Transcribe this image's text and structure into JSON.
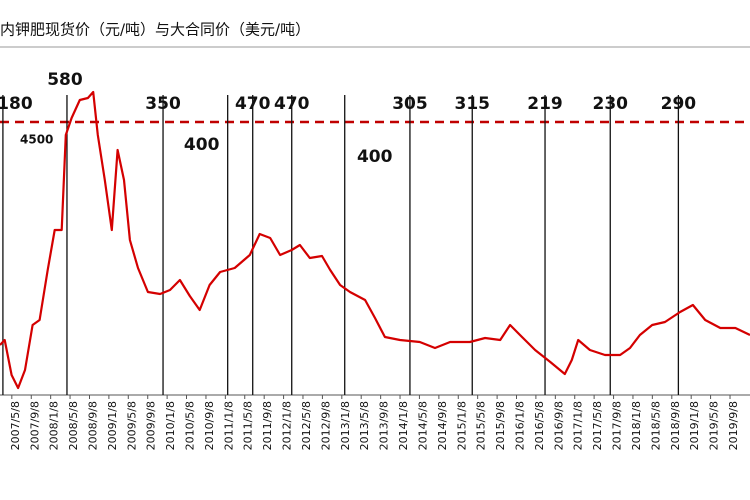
{
  "chart_data": {
    "type": "line",
    "title": "内钾肥现货价（元/吨）与大合同价（美元/吨）",
    "xlim": [
      2007.15,
      2020.03
    ],
    "ylim": [
      1500,
      5200
    ],
    "xticks": [
      {
        "value": 2007.353,
        "label": "2007/5/8"
      },
      {
        "value": 2007.687,
        "label": "2007/9/8"
      },
      {
        "value": 2008.02,
        "label": "2008/1/8"
      },
      {
        "value": 2008.353,
        "label": "2008/5/8"
      },
      {
        "value": 2008.687,
        "label": "2008/9/8"
      },
      {
        "value": 2009.02,
        "label": "2009/1/8"
      },
      {
        "value": 2009.353,
        "label": "2009/5/8"
      },
      {
        "value": 2009.687,
        "label": "2009/9/8"
      },
      {
        "value": 2010.02,
        "label": "2010/1/8"
      },
      {
        "value": 2010.353,
        "label": "2010/5/8"
      },
      {
        "value": 2010.687,
        "label": "2010/9/8"
      },
      {
        "value": 2011.02,
        "label": "2011/1/8"
      },
      {
        "value": 2011.353,
        "label": "2011/5/8"
      },
      {
        "value": 2011.687,
        "label": "2011/9/8"
      },
      {
        "value": 2012.02,
        "label": "2012/1/8"
      },
      {
        "value": 2012.353,
        "label": "2012/5/8"
      },
      {
        "value": 2012.687,
        "label": "2012/9/8"
      },
      {
        "value": 2013.02,
        "label": "2013/1/8"
      },
      {
        "value": 2013.353,
        "label": "2013/5/8"
      },
      {
        "value": 2013.687,
        "label": "2013/9/8"
      },
      {
        "value": 2014.02,
        "label": "2014/1/8"
      },
      {
        "value": 2014.353,
        "label": "2014/5/8"
      },
      {
        "value": 2014.687,
        "label": "2014/9/8"
      },
      {
        "value": 2015.02,
        "label": "2015/1/8"
      },
      {
        "value": 2015.353,
        "label": "2015/5/8"
      },
      {
        "value": 2015.687,
        "label": "2015/9/8"
      },
      {
        "value": 2016.02,
        "label": "2016/1/8"
      },
      {
        "value": 2016.353,
        "label": "2016/5/8"
      },
      {
        "value": 2016.687,
        "label": "2016/9/8"
      },
      {
        "value": 2017.02,
        "label": "2017/1/8"
      },
      {
        "value": 2017.353,
        "label": "2017/5/8"
      },
      {
        "value": 2017.687,
        "label": "2017/9/8"
      },
      {
        "value": 2018.02,
        "label": "2018/1/8"
      },
      {
        "value": 2018.353,
        "label": "2018/5/8"
      },
      {
        "value": 2018.687,
        "label": "2018/9/8"
      },
      {
        "value": 2019.02,
        "label": "2019/1/8"
      },
      {
        "value": 2019.353,
        "label": "2019/5/8"
      },
      {
        "value": 2019.687,
        "label": "2019/9/8"
      }
    ],
    "x": [
      2007.15,
      2007.23,
      2007.35,
      2007.46,
      2007.58,
      2007.71,
      2007.83,
      2007.97,
      2008.09,
      2008.21,
      2008.28,
      2008.38,
      2008.52,
      2008.66,
      2008.75,
      2008.83,
      2008.95,
      2009.07,
      2009.17,
      2009.28,
      2009.38,
      2009.52,
      2009.69,
      2009.9,
      2010.07,
      2010.24,
      2010.41,
      2010.58,
      2010.75,
      2010.93,
      2011.18,
      2011.44,
      2011.61,
      2011.79,
      2011.96,
      2012.16,
      2012.3,
      2012.47,
      2012.68,
      2012.82,
      2012.99,
      2013.16,
      2013.42,
      2013.59,
      2013.76,
      2014.02,
      2014.36,
      2014.62,
      2014.88,
      2015.22,
      2015.48,
      2015.74,
      2015.91,
      2016.08,
      2016.34,
      2016.6,
      2016.85,
      2016.97,
      2017.08,
      2017.28,
      2017.54,
      2017.8,
      2017.97,
      2018.14,
      2018.35,
      2018.57,
      2018.83,
      2019.05,
      2019.26,
      2019.52,
      2019.78,
      2020.03
    ],
    "series": [
      {
        "color": "#d40000",
        "values": [
          2153,
          2205,
          1837,
          1700,
          1889,
          2363,
          2416,
          2942,
          3363,
          3363,
          4363,
          4542,
          4732,
          4753,
          4816,
          4363,
          3889,
          3363,
          4205,
          3889,
          3258,
          2963,
          2711,
          2689,
          2732,
          2837,
          2668,
          2521,
          2784,
          2921,
          2963,
          3100,
          3321,
          3279,
          3100,
          3153,
          3205,
          3068,
          3089,
          2942,
          2784,
          2711,
          2626,
          2437,
          2237,
          2205,
          2184,
          2121,
          2184,
          2184,
          2226,
          2205,
          2363,
          2258,
          2100,
          1974,
          1847,
          1995,
          2205,
          2100,
          2047,
          2047,
          2121,
          2258,
          2363,
          2395,
          2500,
          2574,
          2416,
          2332,
          2332,
          2258
        ]
      }
    ],
    "reference": {
      "value": 4500,
      "color": "#c00000"
    },
    "contracts": [
      {
        "value": 180,
        "x": 2007.2
      },
      {
        "value": 580,
        "x": 2008.3
      },
      {
        "value": 350,
        "x": 2009.95
      },
      {
        "value": 400,
        "x": 2011.06
      },
      {
        "value": 470,
        "x": 2011.49
      },
      {
        "value": 470,
        "x": 2012.16
      },
      {
        "value": 400,
        "x": 2013.07
      },
      {
        "value": 305,
        "x": 2014.19
      },
      {
        "value": 315,
        "x": 2015.26
      },
      {
        "value": 219,
        "x": 2016.51
      },
      {
        "value": 230,
        "x": 2017.63
      },
      {
        "value": 290,
        "x": 2018.8
      }
    ]
  }
}
